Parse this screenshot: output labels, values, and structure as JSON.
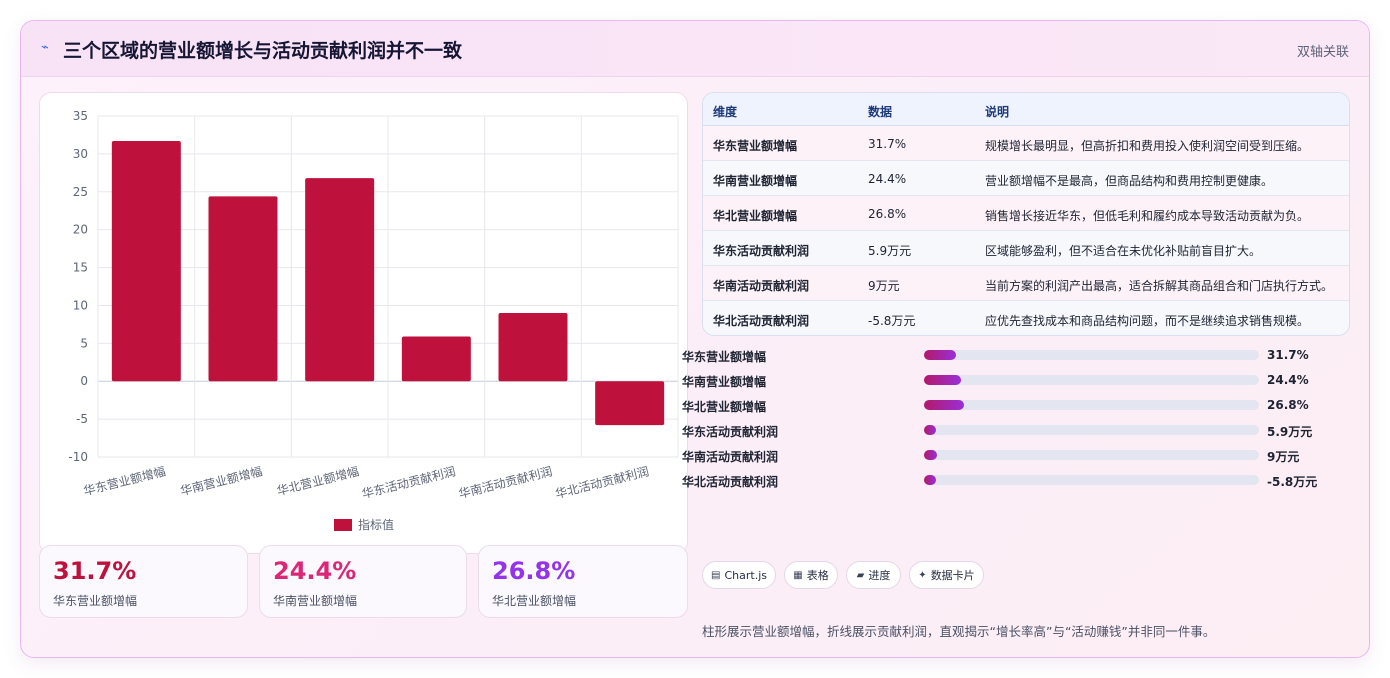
{
  "header": {
    "title": "三个区域的营业额增长与活动贡献利润并不一致",
    "tag": "双轴关联",
    "icon": "lightning-icon"
  },
  "chart_data": {
    "type": "bar",
    "categories": [
      "华东营业额增幅",
      "华南营业额增幅",
      "华北营业额增幅",
      "华东活动贡献利润",
      "华南活动贡献利润",
      "华北活动贡献利润"
    ],
    "series": [
      {
        "name": "指标值",
        "values": [
          31.7,
          24.4,
          26.8,
          5.9,
          9,
          -5.8
        ],
        "color": "#be123c"
      }
    ],
    "yticks": [
      "35",
      "30",
      "25",
      "20",
      "15",
      "10",
      "5",
      "0",
      "-5",
      "-10"
    ],
    "ylim": [
      -10,
      35
    ],
    "grid": true,
    "legend": "bottom"
  },
  "stats": [
    {
      "value": "31.7%",
      "label": "华东营业额增幅",
      "color": "#be123c"
    },
    {
      "value": "24.4%",
      "label": "华南营业额增幅",
      "color": "#db2777"
    },
    {
      "value": "26.8%",
      "label": "华北营业额增幅",
      "color": "#9333ea"
    }
  ],
  "table": {
    "headers": [
      "维度",
      "数据",
      "说明"
    ],
    "rows": [
      {
        "dim": "华东营业额增幅",
        "val": "31.7%",
        "note": "规模增长最明显，但高折扣和费用投入使利润空间受到压缩。"
      },
      {
        "dim": "华南营业额增幅",
        "val": "24.4%",
        "note": "营业额增幅不是最高，但商品结构和费用控制更健康。"
      },
      {
        "dim": "华北营业额增幅",
        "val": "26.8%",
        "note": "销售增长接近华东，但低毛利和履约成本导致活动贡献为负。"
      },
      {
        "dim": "华东活动贡献利润",
        "val": "5.9万元",
        "note": "区域能够盈利，但不适合在未优化补贴前盲目扩大。"
      },
      {
        "dim": "华南活动贡献利润",
        "val": "9万元",
        "note": "当前方案的利润产出最高，适合拆解其商品组合和门店执行方式。"
      },
      {
        "dim": "华北活动贡献利润",
        "val": "-5.8万元",
        "note": "应优先查找成本和商品结构问题，而不是继续追求销售规模。"
      }
    ]
  },
  "progress": [
    {
      "label": "华东营业额增幅",
      "value": "31.7%",
      "level": 0.095
    },
    {
      "label": "华南营业额增幅",
      "value": "24.4%",
      "level": 0.11
    },
    {
      "label": "华北营业额增幅",
      "value": "26.8%",
      "level": 0.12
    },
    {
      "label": "华东活动贡献利润",
      "value": "5.9万元",
      "level": 0.035
    },
    {
      "label": "华南活动贡献利润",
      "value": "9万元",
      "level": 0.04
    },
    {
      "label": "华北活动贡献利润",
      "value": "-5.8万元",
      "level": 0.035
    }
  ],
  "chips": [
    {
      "icon": "chart-icon",
      "glyph": "▤",
      "label": "Chart.js"
    },
    {
      "icon": "table-icon",
      "glyph": "▦",
      "label": "表格"
    },
    {
      "icon": "progress-icon",
      "glyph": "▰",
      "label": "进度"
    },
    {
      "icon": "sparkle-icon",
      "glyph": "✦",
      "label": "数据卡片"
    }
  ],
  "footnote": "柱形展示营业额增幅，折线展示贡献利润，直观揭示“增长率高”与“活动赚钱”并非同一件事。"
}
